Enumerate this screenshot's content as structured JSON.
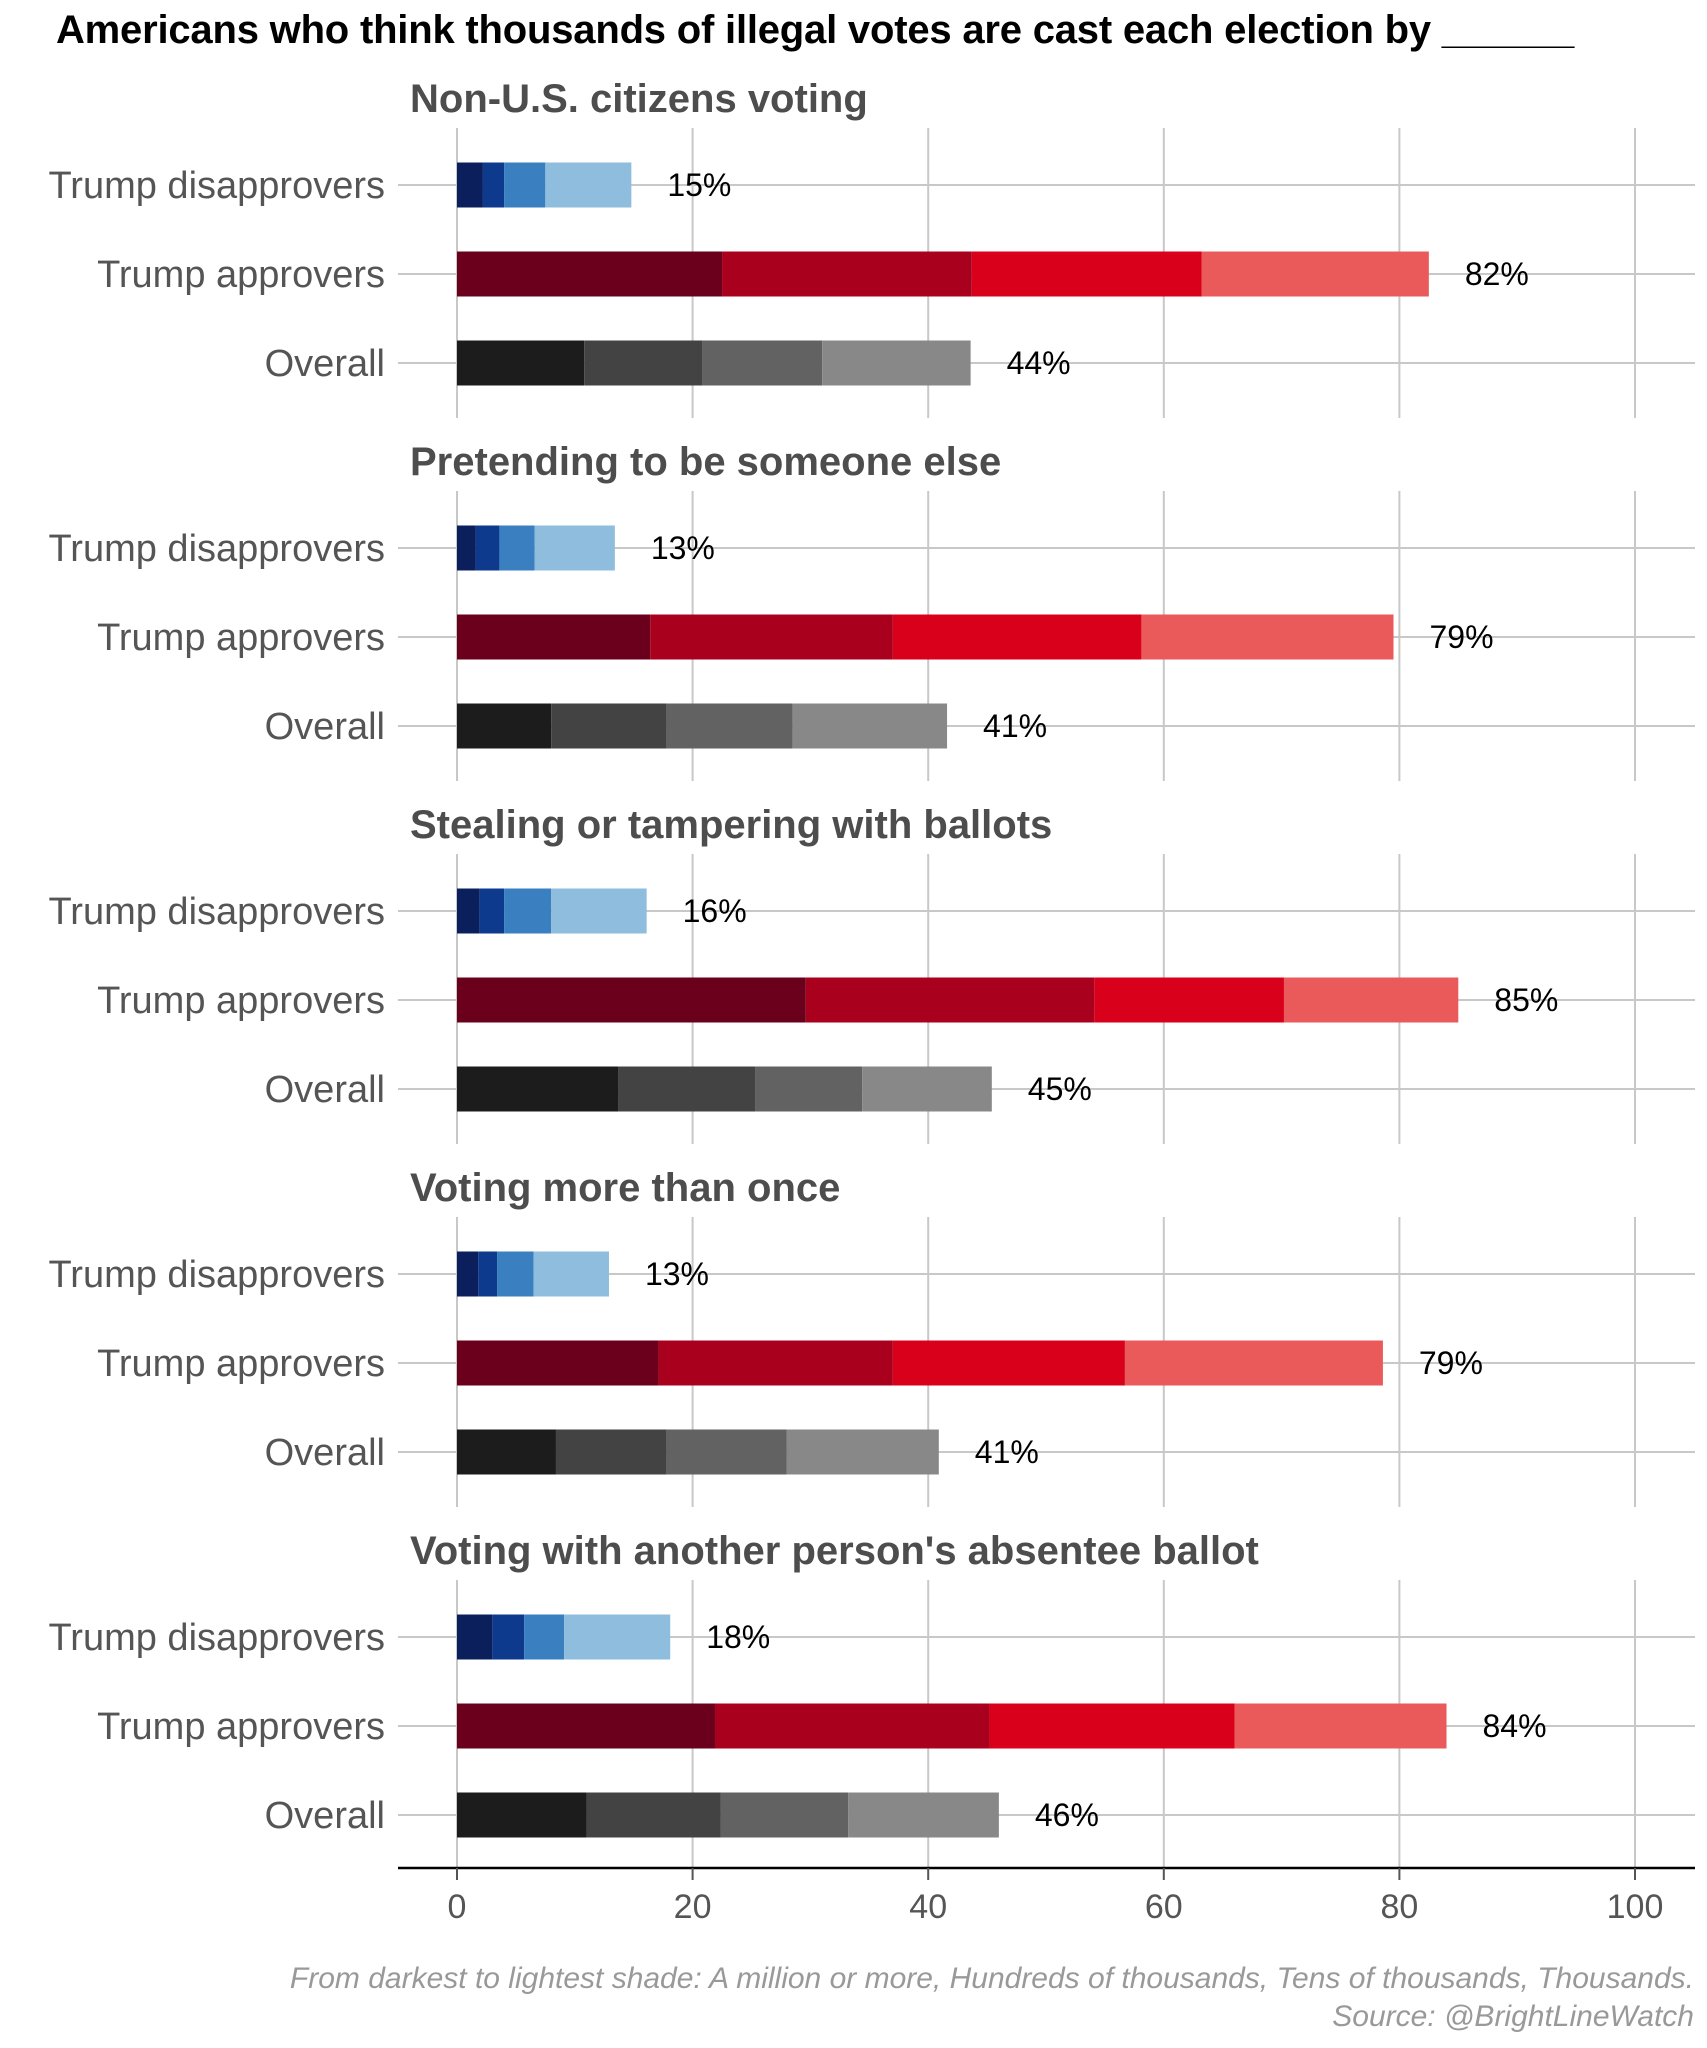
{
  "title": "Americans who think thousands of illegal votes are cast each election by ______",
  "caption": {
    "line1": "From darkest to lightest shade: A million or more, Hundreds of thousands, Tens of thousands, Thousands.",
    "line2": "Source: @BrightLineWatch"
  },
  "colors": {
    "Trump disapprovers": [
      "#0b1f5c",
      "#0d3a8c",
      "#3a7fc0",
      "#8fbddd"
    ],
    "Trump approvers": [
      "#6a001c",
      "#a8001d",
      "#d9001b",
      "#ea5a5a"
    ],
    "Overall": [
      "#1c1c1c",
      "#434343",
      "#626262",
      "#888888"
    ]
  },
  "chart_data": {
    "type": "bar",
    "orientation": "horizontal",
    "stacked": true,
    "title": "Americans who think thousands of illegal votes are cast each election by ______",
    "categories": [
      "Trump disapprovers",
      "Trump approvers",
      "Overall"
    ],
    "stack_order": [
      "A million or more",
      "Hundreds of thousands",
      "Tens of thousands",
      "Thousands"
    ],
    "xlim": [
      0,
      100
    ],
    "xticks": [
      0,
      20,
      40,
      60,
      80,
      100
    ],
    "grid": true,
    "panels": [
      {
        "title": "Non-U.S. citizens voting",
        "rows": [
          {
            "label": "Trump disapprovers",
            "segments": [
              2.2,
              1.8,
              3.5,
              7.3
            ],
            "total_label": "15%"
          },
          {
            "label": "Trump approvers",
            "segments": [
              22.5,
              21.2,
              19.5,
              19.3
            ],
            "total_label": "82%"
          },
          {
            "label": "Overall",
            "segments": [
              10.8,
              10.0,
              10.2,
              12.6
            ],
            "total_label": "44%"
          }
        ]
      },
      {
        "title": "Pretending to be someone else",
        "rows": [
          {
            "label": "Trump disapprovers",
            "segments": [
              1.6,
              2.0,
              3.0,
              6.8
            ],
            "total_label": "13%"
          },
          {
            "label": "Trump approvers",
            "segments": [
              16.4,
              20.6,
              21.1,
              21.4
            ],
            "total_label": "79%"
          },
          {
            "label": "Overall",
            "segments": [
              8.0,
              9.8,
              10.7,
              13.1
            ],
            "total_label": "41%"
          }
        ]
      },
      {
        "title": "Stealing or tampering with ballots",
        "rows": [
          {
            "label": "Trump disapprovers",
            "segments": [
              1.9,
              2.1,
              4.0,
              8.1
            ],
            "total_label": "16%"
          },
          {
            "label": "Trump approvers",
            "segments": [
              29.6,
              24.5,
              16.1,
              14.8
            ],
            "total_label": "85%"
          },
          {
            "label": "Overall",
            "segments": [
              13.7,
              11.6,
              9.1,
              11.0
            ],
            "total_label": "45%"
          }
        ]
      },
      {
        "title": "Voting more than once",
        "rows": [
          {
            "label": "Trump disapprovers",
            "segments": [
              1.8,
              1.6,
              3.1,
              6.4
            ],
            "total_label": "13%"
          },
          {
            "label": "Trump approvers",
            "segments": [
              17.1,
              19.9,
              19.7,
              21.9
            ],
            "total_label": "79%"
          },
          {
            "label": "Overall",
            "segments": [
              8.4,
              9.4,
              10.2,
              12.9
            ],
            "total_label": "41%"
          }
        ]
      },
      {
        "title": "Voting with another person's absentee ballot",
        "rows": [
          {
            "label": "Trump disapprovers",
            "segments": [
              3.0,
              2.7,
              3.4,
              9.0
            ],
            "total_label": "18%"
          },
          {
            "label": "Trump approvers",
            "segments": [
              21.9,
              23.3,
              20.8,
              18.0
            ],
            "total_label": "84%"
          },
          {
            "label": "Overall",
            "segments": [
              11.0,
              11.4,
              10.8,
              12.8
            ],
            "total_label": "46%"
          }
        ]
      }
    ]
  }
}
